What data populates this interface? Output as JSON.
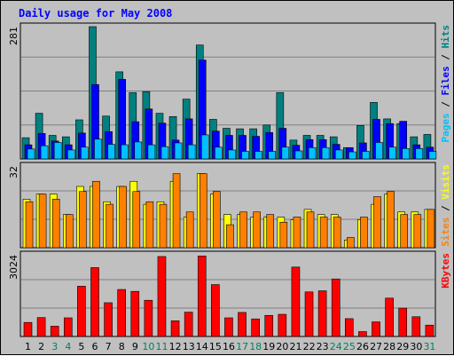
{
  "title": "Daily usage for May 2008",
  "colors": {
    "hits": "#008080",
    "files": "#0000ff",
    "pages": "#00c0ff",
    "visits": "#ffff00",
    "sites": "#ff8000",
    "kbytes": "#ff0000",
    "weekend": "#00805c",
    "weekday": "#000000",
    "title": "#0000ff"
  },
  "chart_data": [
    {
      "type": "bar",
      "categories": [
        "1",
        "2",
        "3",
        "4",
        "5",
        "6",
        "7",
        "8",
        "9",
        "10",
        "11",
        "12",
        "13",
        "14",
        "15",
        "16",
        "17",
        "18",
        "19",
        "20",
        "21",
        "22",
        "23",
        "24",
        "25",
        "26",
        "27",
        "28",
        "29",
        "30",
        "31"
      ],
      "weekend_days": [
        "3",
        "4",
        "10",
        "11",
        "17",
        "18",
        "24",
        "25",
        "31"
      ],
      "ylim": [
        0,
        281
      ],
      "ytick_label": "281",
      "series_label_parts": [
        "Pages",
        "Files",
        "Hits"
      ],
      "series": [
        {
          "name": "Hits",
          "values": [
            45,
            97,
            50,
            47,
            83,
            281,
            91,
            185,
            141,
            143,
            97,
            90,
            127,
            242,
            84,
            65,
            64,
            64,
            72,
            141,
            40,
            50,
            50,
            47,
            24,
            71,
            120,
            85,
            75,
            47,
            52
          ]
        },
        {
          "name": "Files",
          "values": [
            30,
            54,
            38,
            30,
            55,
            158,
            58,
            169,
            79,
            106,
            76,
            40,
            85,
            210,
            59,
            50,
            50,
            48,
            56,
            65,
            29,
            41,
            41,
            31,
            24,
            34,
            84,
            75,
            80,
            30,
            25
          ]
        },
        {
          "name": "Pages",
          "values": [
            21,
            28,
            35,
            19,
            25,
            42,
            31,
            30,
            36,
            30,
            26,
            34,
            30,
            51,
            25,
            19,
            16,
            16,
            16,
            25,
            17,
            24,
            24,
            19,
            15,
            16,
            35,
            25,
            22,
            22,
            16
          ]
        }
      ]
    },
    {
      "type": "bar",
      "categories": [
        "1",
        "2",
        "3",
        "4",
        "5",
        "6",
        "7",
        "8",
        "9",
        "10",
        "11",
        "12",
        "13",
        "14",
        "15",
        "16",
        "17",
        "18",
        "19",
        "20",
        "21",
        "22",
        "23",
        "24",
        "25",
        "26",
        "27",
        "28",
        "29",
        "30",
        "31"
      ],
      "ylim": [
        0,
        32
      ],
      "ytick_label": "32",
      "series_label_parts": [
        "Sites",
        "Visits"
      ],
      "series": [
        {
          "name": "Visits",
          "values": [
            19,
            21,
            21,
            13,
            24,
            24,
            18,
            24,
            26,
            17,
            18,
            26,
            12,
            29,
            21,
            13,
            13,
            12,
            12,
            12,
            11,
            15,
            13,
            13,
            3,
            11,
            17,
            21,
            14,
            14,
            15
          ]
        },
        {
          "name": "Sites",
          "values": [
            18,
            21,
            19,
            13,
            22,
            26,
            17,
            24,
            22,
            18,
            17,
            29,
            14,
            29,
            22,
            9,
            14,
            14,
            13,
            10,
            12,
            14,
            12,
            12,
            4,
            12,
            20,
            22,
            13,
            13,
            15
          ]
        }
      ]
    },
    {
      "type": "bar",
      "categories": [
        "1",
        "2",
        "3",
        "4",
        "5",
        "6",
        "7",
        "8",
        "9",
        "10",
        "11",
        "12",
        "13",
        "14",
        "15",
        "16",
        "17",
        "18",
        "19",
        "20",
        "21",
        "22",
        "23",
        "24",
        "25",
        "26",
        "27",
        "28",
        "29",
        "30",
        "31"
      ],
      "ylim": [
        0,
        3024
      ],
      "ytick_label": "3024",
      "series_label_parts": [
        "KBytes"
      ],
      "series": [
        {
          "name": "KBytes",
          "values": [
            520,
            700,
            380,
            690,
            1860,
            2550,
            1250,
            1740,
            1670,
            1340,
            2960,
            580,
            900,
            2980,
            1920,
            690,
            890,
            650,
            780,
            820,
            2570,
            1650,
            1690,
            2130,
            660,
            180,
            540,
            1420,
            1050,
            730,
            420
          ]
        }
      ]
    }
  ]
}
